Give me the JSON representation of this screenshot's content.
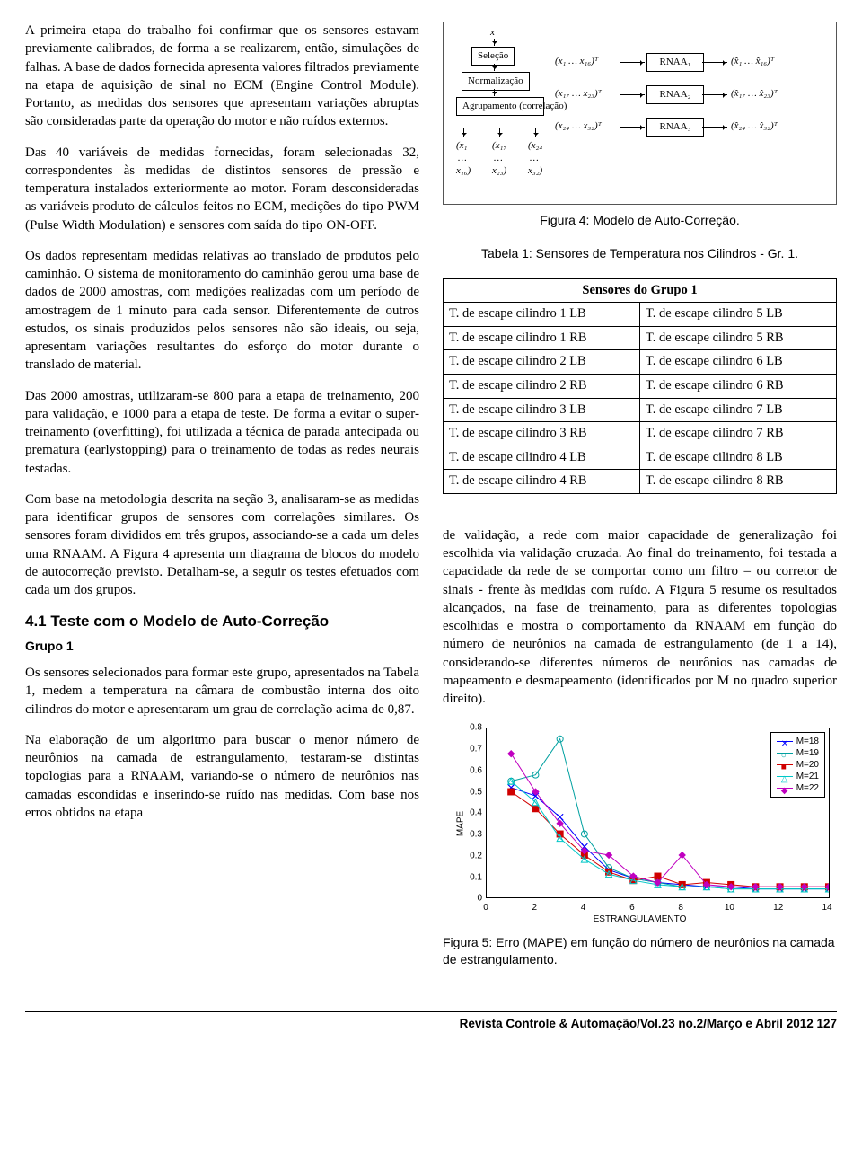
{
  "left": {
    "p1": "A primeira etapa do trabalho foi confirmar que os sensores estavam previamente calibrados, de forma a se realizarem, então, simulações de falhas. A base de dados fornecida apresenta valores filtrados previamente na etapa de aquisição de sinal no ECM (Engine Control Module). Portanto, as medidas dos sensores que apresentam variações abruptas são consideradas parte da operação do motor e não ruídos externos.",
    "p2": "Das 40 variáveis de medidas fornecidas, foram selecionadas 32, correspondentes às medidas de distintos sensores de pressão e temperatura instalados exteriormente ao motor. Foram desconsideradas as variáveis produto de cálculos feitos no ECM, medições do tipo PWM (Pulse Width Modulation) e sensores com saída do tipo ON-OFF.",
    "p3": "Os dados representam medidas relativas ao translado de produtos pelo caminhão. O sistema de monitoramento do caminhão gerou uma base de dados de 2000 amostras, com medições realizadas com um período de amostragem de 1 minuto para cada sensor. Diferentemente de outros estudos, os sinais produzidos pelos sensores não são ideais, ou seja, apresentam variações resultantes do esforço do motor durante o translado de material.",
    "p4": "Das 2000 amostras, utilizaram-se 800 para a etapa de treinamento, 200 para validação, e 1000 para a etapa de teste. De forma a evitar o super-treinamento (overfitting), foi utilizada a técnica de parada antecipada ou prematura (earlystopping) para o treinamento de todas as redes neurais testadas.",
    "p5": "Com base na metodologia descrita na seção 3, analisaram-se as medidas para identificar grupos de sensores com correlações similares. Os sensores foram divididos em três grupos, associando-se a cada um deles uma RNAAM. A Figura 4 apresenta um diagrama de blocos do modelo de autocorreção previsto. Detalham-se, a seguir os testes efetuados com cada um dos grupos.",
    "section": "4.1  Teste  com  o  Modelo  de  Auto-Correção",
    "subhead": "Grupo 1",
    "p6": "Os sensores selecionados para formar este grupo, apresentados na Tabela 1, medem a temperatura na câmara de combustão interna dos oito cilindros do motor e apresentaram um grau de correlação acima de 0,87.",
    "p7": "Na elaboração de um algoritmo para buscar o menor número de neurônios na camada de estrangulamento, testaram-se distintas topologias para a RNAAM, variando-se o número de neurônios nas camadas escondidas e inserindo-se ruído nas medidas. Com base nos erros obtidos na etapa"
  },
  "fig4": {
    "caption": "Figura 4: Modelo de Auto-Correção.",
    "nodes": {
      "x": "x",
      "selecao": "Seleção",
      "norm": "Normalização",
      "agrup": "Agrupamento\n(correlação)",
      "rna1": "RNAA₁",
      "rna2": "RNAA₂",
      "rna3": "RNAA₃"
    },
    "labels": {
      "in1": "(x₁ … x₁₆)ᵀ",
      "in2": "(x₁₇ … x₂₃)ᵀ",
      "in3": "(x₂₄ … x₃₂)ᵀ",
      "out1": "(x̂₁ … x̂₁₆)ᵀ",
      "out2": "(x̂₁₇ … x̂₂₃)ᵀ",
      "out3": "(x̂₂₄ … x̂₃₂)ᵀ",
      "col1a": "x₁",
      "col1b": "…",
      "col1c": "x₁₆",
      "col2a": "x₁₇",
      "col2b": "…",
      "col2c": "x₂₃",
      "col3a": "x₂₄",
      "col3b": "…",
      "col3c": "x₃₂"
    }
  },
  "table1": {
    "caption": "Tabela 1: Sensores de Temperatura nos Cilindros - Gr. 1.",
    "header": "Sensores do Grupo 1",
    "rows": [
      [
        "T. de escape cilindro 1 LB",
        "T. de escape cilindro 5 LB"
      ],
      [
        "T. de escape cilindro 1 RB",
        "T. de escape cilindro 5 RB"
      ],
      [
        "T. de escape cilindro 2 LB",
        "T. de escape cilindro 6 LB"
      ],
      [
        "T. de escape cilindro 2 RB",
        "T. de escape cilindro 6 RB"
      ],
      [
        "T. de escape cilindro 3 LB",
        "T. de escape cilindro 7 LB"
      ],
      [
        "T. de escape cilindro 3 RB",
        "T. de escape cilindro 7 RB"
      ],
      [
        "T. de escape cilindro 4 LB",
        "T. de escape cilindro 8 LB"
      ],
      [
        "T. de escape cilindro 4 RB",
        "T. de escape cilindro 8 RB"
      ]
    ]
  },
  "right": {
    "p1": "de validação, a rede com maior capacidade de generalização foi escolhida via validação cruzada. Ao final do treinamento, foi testada a capacidade da rede de se comportar como um filtro – ou corretor de sinais - frente às medidas com ruído. A Figura 5 resume os resultados alcançados, na fase de treinamento, para as diferentes topologias escolhidas e mostra o comportamento da RNAAM em função do número de neurônios na camada de estrangulamento (de 1 a 14), considerando-se diferentes números de neurônios nas camadas de mapeamento e desmapeamento (identificados por M no quadro superior direito)."
  },
  "fig5": {
    "caption": "Figura 5: Erro (MAPE) em função do número de neurônios na camada de estrangulamento.",
    "xlabel": "ESTRANGULAMENTO",
    "ylabel": "MAPE",
    "xlim": [
      0,
      14
    ],
    "ylim": [
      0,
      0.8
    ],
    "xticks": [
      0,
      2,
      4,
      6,
      8,
      10,
      12,
      14
    ],
    "yticks": [
      0,
      0.1,
      0.2,
      0.3,
      0.4,
      0.5,
      0.6,
      0.7,
      0.8
    ],
    "series": [
      {
        "label": "M=18",
        "color": "#0000ff",
        "marker": "x",
        "x": [
          1,
          2,
          3,
          4,
          5,
          6,
          7,
          8,
          9,
          10,
          11,
          12,
          13,
          14
        ],
        "y": [
          0.52,
          0.48,
          0.38,
          0.24,
          0.13,
          0.09,
          0.07,
          0.06,
          0.05,
          0.05,
          0.04,
          0.04,
          0.04,
          0.04
        ]
      },
      {
        "label": "M=19",
        "color": "#00a0a0",
        "marker": "o",
        "x": [
          1,
          2,
          3,
          4,
          5,
          6,
          7,
          8,
          9,
          10,
          11,
          12,
          13,
          14
        ],
        "y": [
          0.55,
          0.58,
          0.75,
          0.3,
          0.14,
          0.09,
          0.07,
          0.05,
          0.05,
          0.04,
          0.04,
          0.04,
          0.04,
          0.04
        ]
      },
      {
        "label": "M=20",
        "color": "#d00000",
        "marker": "s",
        "x": [
          1,
          2,
          3,
          4,
          5,
          6,
          7,
          8,
          9,
          10,
          11,
          12,
          13,
          14
        ],
        "y": [
          0.5,
          0.42,
          0.3,
          0.2,
          0.12,
          0.08,
          0.1,
          0.06,
          0.07,
          0.06,
          0.05,
          0.05,
          0.05,
          0.05
        ]
      },
      {
        "label": "M=21",
        "color": "#00c8c8",
        "marker": "t",
        "x": [
          1,
          2,
          3,
          4,
          5,
          6,
          7,
          8,
          9,
          10,
          11,
          12,
          13,
          14
        ],
        "y": [
          0.55,
          0.45,
          0.28,
          0.18,
          0.11,
          0.08,
          0.06,
          0.05,
          0.05,
          0.04,
          0.04,
          0.04,
          0.04,
          0.04
        ]
      },
      {
        "label": "M=22",
        "color": "#c000c0",
        "marker": "d",
        "x": [
          1,
          2,
          3,
          4,
          5,
          6,
          7,
          8,
          9,
          10,
          11,
          12,
          13,
          14
        ],
        "y": [
          0.68,
          0.5,
          0.35,
          0.22,
          0.2,
          0.1,
          0.07,
          0.2,
          0.06,
          0.05,
          0.05,
          0.05,
          0.05,
          0.05
        ]
      }
    ]
  },
  "footer": "Revista Controle & Automação/Vol.23 no.2/Março e Abril 2012   127"
}
